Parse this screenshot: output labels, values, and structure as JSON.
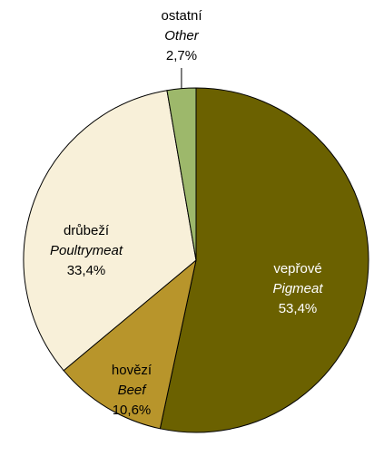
{
  "chart_data": {
    "type": "pie",
    "categories": [
      "vepřové",
      "hovězí",
      "drůbeží",
      "ostatní"
    ],
    "categories_en": [
      "Pigmeat",
      "Beef",
      "Poultrymeat",
      "Other"
    ],
    "values": [
      53.4,
      10.6,
      33.4,
      2.7
    ],
    "value_labels": [
      "53,4%",
      "10,6%",
      "33,4%",
      "2,7%"
    ],
    "colors": [
      "#6b6100",
      "#b8952b",
      "#f8f0d9",
      "#9db86b"
    ]
  }
}
